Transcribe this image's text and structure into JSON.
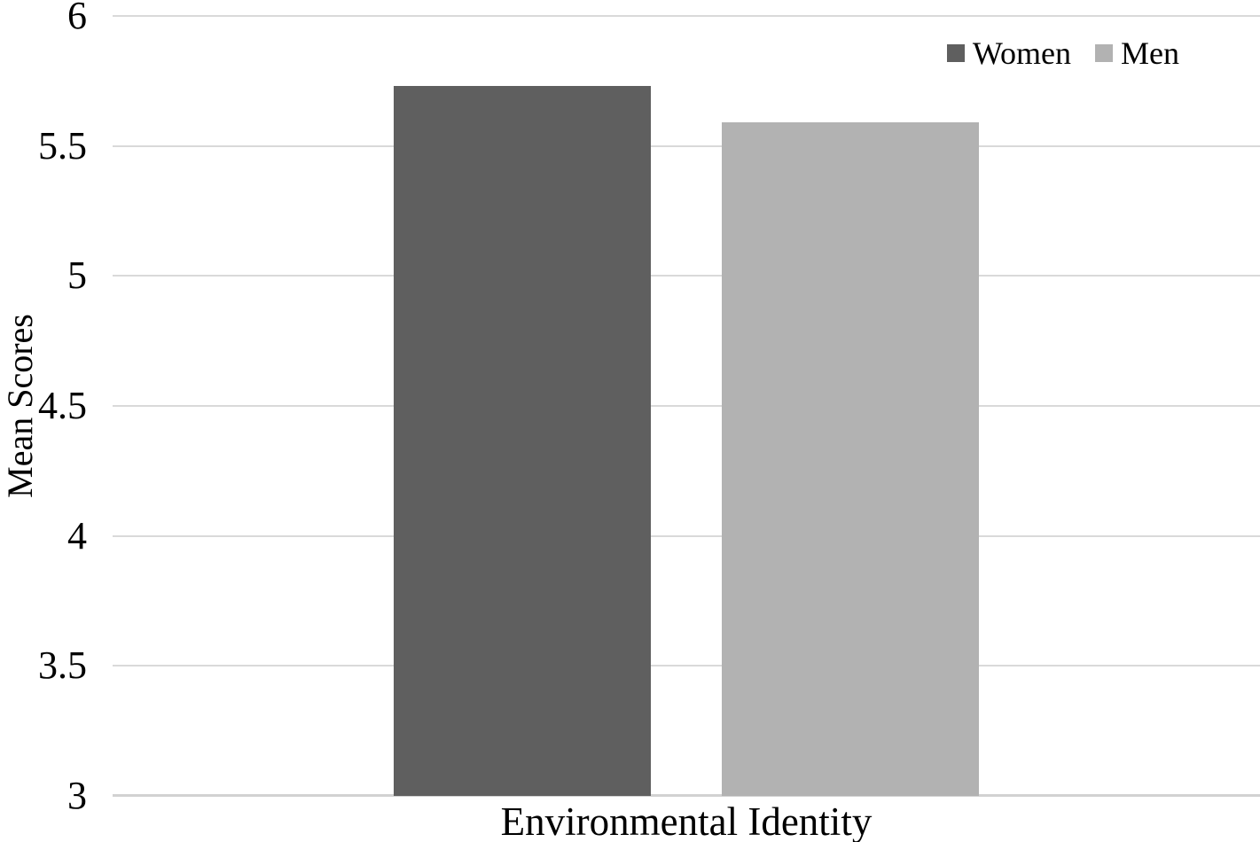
{
  "chart_data": {
    "type": "bar",
    "categories": [
      "Environmental Identity"
    ],
    "series": [
      {
        "name": "Women",
        "value": 5.73,
        "color": "#5f5f5f"
      },
      {
        "name": "Men",
        "value": 5.59,
        "color": "#b2b2b2"
      }
    ],
    "xlabel": "Environmental Identity",
    "ylabel": "Mean Scores",
    "ylim": [
      3,
      6
    ],
    "yticks": [
      "3",
      "3.5",
      "4",
      "4.5",
      "5",
      "5.5",
      "6"
    ],
    "grid": "horizontal",
    "gridline_color": "#d9d9d9",
    "axis_line_color": "#d2d2d2",
    "legend_position": "top-right",
    "background": "#ffffff"
  }
}
